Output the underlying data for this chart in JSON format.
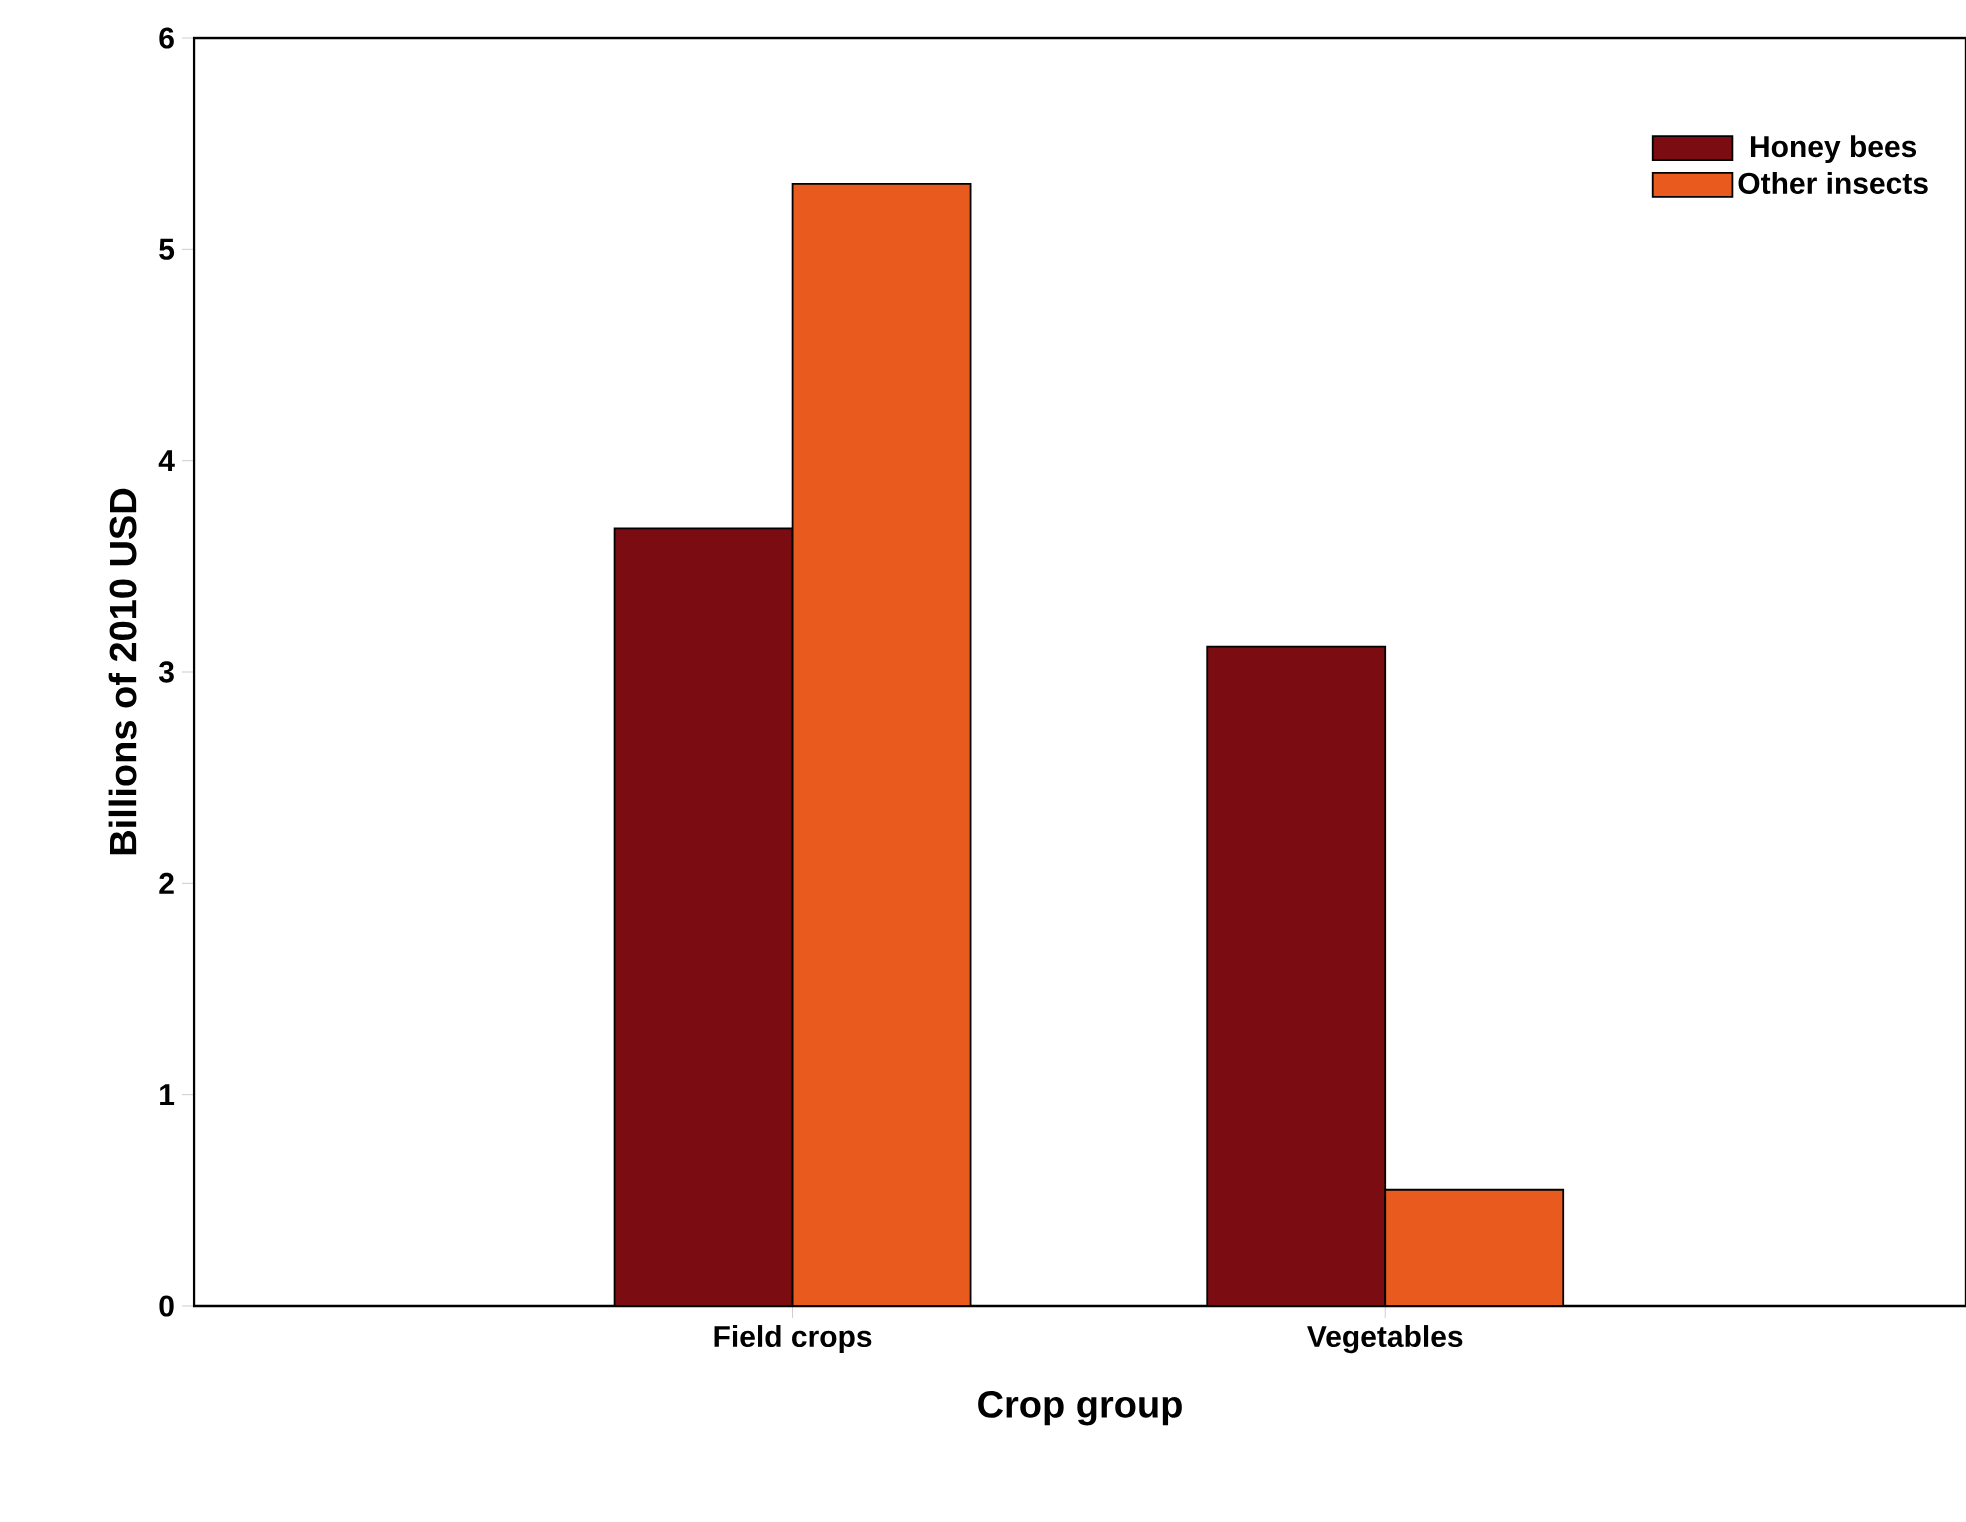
{
  "chart_data": {
    "type": "bar",
    "xlabel": "Crop group",
    "ylabel": "Billions of 2010 USD",
    "categories": [
      "Field crops",
      "Vegetables"
    ],
    "series": [
      {
        "name": "Honey bees",
        "color": "#7a0c12",
        "values": [
          3.68,
          3.12
        ]
      },
      {
        "name": "Other insects",
        "color": "#e85a1e",
        "values": [
          5.31,
          0.55
        ]
      }
    ],
    "ylim": [
      0,
      6
    ],
    "yticks": [
      0,
      1,
      2,
      3,
      4,
      5,
      6
    ],
    "grid": false,
    "legend": "top right"
  }
}
